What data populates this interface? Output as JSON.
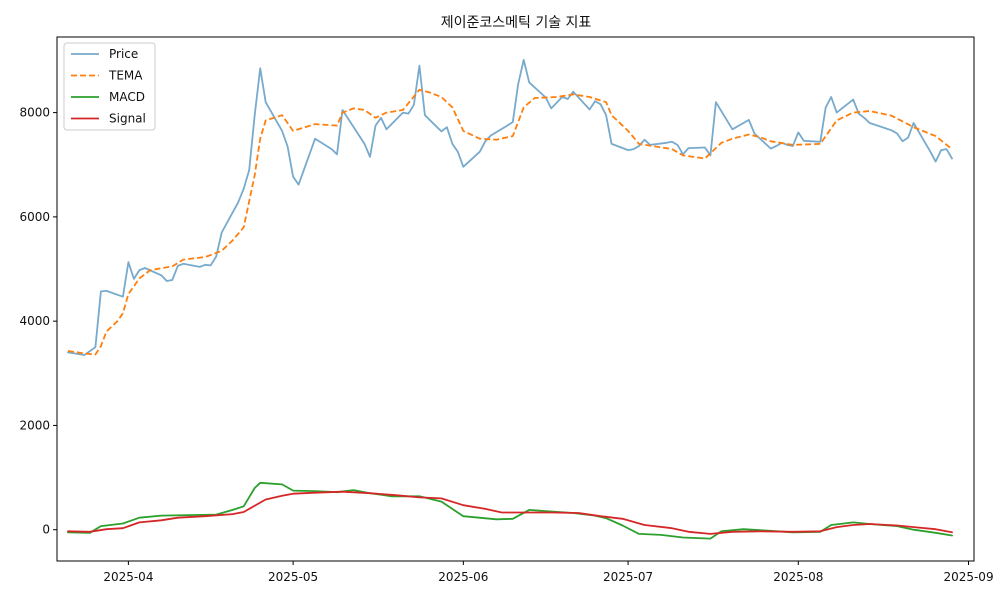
{
  "chart_data": {
    "type": "line",
    "title": "제이준코스메틱 기술 지표",
    "xlabel": "",
    "ylabel": "",
    "grid": false,
    "legend_position": "top-left",
    "x_tick_labels": [
      "2025-04",
      "2025-05",
      "2025-06",
      "2025-07",
      "2025-08",
      "2025-09"
    ],
    "x_ticks": [
      "2025-04-01",
      "2025-05-01",
      "2025-06-01",
      "2025-07-01",
      "2025-08-01",
      "2025-09-01"
    ],
    "xlim": [
      "2025-03-19",
      "2025-09-02"
    ],
    "y_ticks": [
      0,
      2000,
      4000,
      6000,
      8000
    ],
    "ylim": [
      -600,
      9450
    ],
    "series": [
      {
        "name": "Price",
        "color": "#77aacc",
        "dash": "solid",
        "points": [
          [
            "2025-03-21",
            3400
          ],
          [
            "2025-03-24",
            3350
          ],
          [
            "2025-03-26",
            3500
          ],
          [
            "2025-03-27",
            4570
          ],
          [
            "2025-03-28",
            4580
          ],
          [
            "2025-03-31",
            4470
          ],
          [
            "2025-04-01",
            5130
          ],
          [
            "2025-04-02",
            4810
          ],
          [
            "2025-04-03",
            4980
          ],
          [
            "2025-04-04",
            5020
          ],
          [
            "2025-04-07",
            4880
          ],
          [
            "2025-04-08",
            4770
          ],
          [
            "2025-04-09",
            4790
          ],
          [
            "2025-04-10",
            5060
          ],
          [
            "2025-04-11",
            5100
          ],
          [
            "2025-04-14",
            5040
          ],
          [
            "2025-04-15",
            5080
          ],
          [
            "2025-04-16",
            5070
          ],
          [
            "2025-04-17",
            5240
          ],
          [
            "2025-04-18",
            5700
          ],
          [
            "2025-04-21",
            6280
          ],
          [
            "2025-04-22",
            6540
          ],
          [
            "2025-04-23",
            6900
          ],
          [
            "2025-04-24",
            7950
          ],
          [
            "2025-04-25",
            8850
          ],
          [
            "2025-04-26",
            8200
          ],
          [
            "2025-04-29",
            7650
          ],
          [
            "2025-04-30",
            7350
          ],
          [
            "2025-05-01",
            6770
          ],
          [
            "2025-05-02",
            6620
          ],
          [
            "2025-05-05",
            7500
          ],
          [
            "2025-05-08",
            7300
          ],
          [
            "2025-05-09",
            7200
          ],
          [
            "2025-05-10",
            8050
          ],
          [
            "2025-05-14",
            7400
          ],
          [
            "2025-05-15",
            7150
          ],
          [
            "2025-05-16",
            7750
          ],
          [
            "2025-05-17",
            7900
          ],
          [
            "2025-05-18",
            7680
          ],
          [
            "2025-05-21",
            8000
          ],
          [
            "2025-05-22",
            7980
          ],
          [
            "2025-05-23",
            8150
          ],
          [
            "2025-05-24",
            8900
          ],
          [
            "2025-05-25",
            7950
          ],
          [
            "2025-05-28",
            7640
          ],
          [
            "2025-05-29",
            7720
          ],
          [
            "2025-05-30",
            7400
          ],
          [
            "2025-05-31",
            7250
          ],
          [
            "2025-06-01",
            6960
          ],
          [
            "2025-06-04",
            7250
          ],
          [
            "2025-06-05",
            7450
          ],
          [
            "2025-06-06",
            7560
          ],
          [
            "2025-06-09",
            7750
          ],
          [
            "2025-06-10",
            7820
          ],
          [
            "2025-06-11",
            8550
          ],
          [
            "2025-06-12",
            9010
          ],
          [
            "2025-06-13",
            8580
          ],
          [
            "2025-06-16",
            8290
          ],
          [
            "2025-06-17",
            8080
          ],
          [
            "2025-06-19",
            8300
          ],
          [
            "2025-06-20",
            8260
          ],
          [
            "2025-06-21",
            8400
          ],
          [
            "2025-06-24",
            8060
          ],
          [
            "2025-06-25",
            8220
          ],
          [
            "2025-06-26",
            8160
          ],
          [
            "2025-06-27",
            7950
          ],
          [
            "2025-06-28",
            7400
          ],
          [
            "2025-07-01",
            7280
          ],
          [
            "2025-07-02",
            7300
          ],
          [
            "2025-07-03",
            7360
          ],
          [
            "2025-07-04",
            7480
          ],
          [
            "2025-07-05",
            7380
          ],
          [
            "2025-07-08",
            7420
          ],
          [
            "2025-07-09",
            7440
          ],
          [
            "2025-07-10",
            7380
          ],
          [
            "2025-07-11",
            7200
          ],
          [
            "2025-07-12",
            7320
          ],
          [
            "2025-07-15",
            7330
          ],
          [
            "2025-07-16",
            7180
          ],
          [
            "2025-07-17",
            8200
          ],
          [
            "2025-07-20",
            7680
          ],
          [
            "2025-07-23",
            7860
          ],
          [
            "2025-07-24",
            7600
          ],
          [
            "2025-07-27",
            7310
          ],
          [
            "2025-07-28",
            7360
          ],
          [
            "2025-07-29",
            7420
          ],
          [
            "2025-07-30",
            7380
          ],
          [
            "2025-07-31",
            7360
          ],
          [
            "2025-08-01",
            7620
          ],
          [
            "2025-08-02",
            7460
          ],
          [
            "2025-08-05",
            7440
          ],
          [
            "2025-08-06",
            8100
          ],
          [
            "2025-08-07",
            8300
          ],
          [
            "2025-08-08",
            8000
          ],
          [
            "2025-08-11",
            8250
          ],
          [
            "2025-08-12",
            7980
          ],
          [
            "2025-08-13",
            7900
          ],
          [
            "2025-08-14",
            7800
          ],
          [
            "2025-08-18",
            7660
          ],
          [
            "2025-08-19",
            7600
          ],
          [
            "2025-08-20",
            7450
          ],
          [
            "2025-08-21",
            7520
          ],
          [
            "2025-08-22",
            7800
          ],
          [
            "2025-08-25",
            7260
          ],
          [
            "2025-08-26",
            7060
          ],
          [
            "2025-08-27",
            7280
          ],
          [
            "2025-08-28",
            7300
          ],
          [
            "2025-08-29",
            7120
          ]
        ]
      },
      {
        "name": "TEMA",
        "color": "#ff7f0e",
        "dash": "dashed",
        "points": [
          [
            "2025-03-21",
            3430
          ],
          [
            "2025-03-24",
            3380
          ],
          [
            "2025-03-26",
            3360
          ],
          [
            "2025-03-27",
            3520
          ],
          [
            "2025-03-28",
            3800
          ],
          [
            "2025-03-30",
            4000
          ],
          [
            "2025-03-31",
            4150
          ],
          [
            "2025-04-01",
            4520
          ],
          [
            "2025-04-03",
            4820
          ],
          [
            "2025-04-05",
            4980
          ],
          [
            "2025-04-09",
            5050
          ],
          [
            "2025-04-11",
            5180
          ],
          [
            "2025-04-15",
            5230
          ],
          [
            "2025-04-18",
            5350
          ],
          [
            "2025-04-20",
            5550
          ],
          [
            "2025-04-22",
            5800
          ],
          [
            "2025-04-24",
            6800
          ],
          [
            "2025-04-25",
            7500
          ],
          [
            "2025-04-26",
            7850
          ],
          [
            "2025-04-29",
            7950
          ],
          [
            "2025-05-01",
            7650
          ],
          [
            "2025-05-05",
            7780
          ],
          [
            "2025-05-09",
            7750
          ],
          [
            "2025-05-10",
            8000
          ],
          [
            "2025-05-12",
            8080
          ],
          [
            "2025-05-14",
            8050
          ],
          [
            "2025-05-16",
            7900
          ],
          [
            "2025-05-18",
            8000
          ],
          [
            "2025-05-21",
            8050
          ],
          [
            "2025-05-24",
            8440
          ],
          [
            "2025-05-26",
            8380
          ],
          [
            "2025-05-28",
            8300
          ],
          [
            "2025-05-30",
            8100
          ],
          [
            "2025-06-01",
            7650
          ],
          [
            "2025-06-04",
            7500
          ],
          [
            "2025-06-07",
            7480
          ],
          [
            "2025-06-10",
            7550
          ],
          [
            "2025-06-12",
            8100
          ],
          [
            "2025-06-14",
            8280
          ],
          [
            "2025-06-18",
            8300
          ],
          [
            "2025-06-21",
            8350
          ],
          [
            "2025-06-24",
            8300
          ],
          [
            "2025-06-27",
            8200
          ],
          [
            "2025-06-28",
            7950
          ],
          [
            "2025-07-01",
            7650
          ],
          [
            "2025-07-03",
            7400
          ],
          [
            "2025-07-06",
            7350
          ],
          [
            "2025-07-09",
            7300
          ],
          [
            "2025-07-11",
            7180
          ],
          [
            "2025-07-15",
            7120
          ],
          [
            "2025-07-18",
            7420
          ],
          [
            "2025-07-20",
            7500
          ],
          [
            "2025-07-23",
            7580
          ],
          [
            "2025-07-25",
            7530
          ],
          [
            "2025-07-27",
            7450
          ],
          [
            "2025-07-31",
            7380
          ],
          [
            "2025-08-05",
            7400
          ],
          [
            "2025-08-08",
            7850
          ],
          [
            "2025-08-11",
            8000
          ],
          [
            "2025-08-14",
            8030
          ],
          [
            "2025-08-18",
            7940
          ],
          [
            "2025-08-22",
            7720
          ],
          [
            "2025-08-26",
            7550
          ],
          [
            "2025-08-29",
            7300
          ]
        ]
      },
      {
        "name": "MACD",
        "color": "#2ca02c",
        "dash": "solid",
        "points": [
          [
            "2025-03-21",
            -50
          ],
          [
            "2025-03-25",
            -60
          ],
          [
            "2025-03-27",
            70
          ],
          [
            "2025-03-31",
            120
          ],
          [
            "2025-04-03",
            230
          ],
          [
            "2025-04-07",
            270
          ],
          [
            "2025-04-12",
            280
          ],
          [
            "2025-04-17",
            290
          ],
          [
            "2025-04-20",
            380
          ],
          [
            "2025-04-22",
            450
          ],
          [
            "2025-04-24",
            800
          ],
          [
            "2025-04-25",
            900
          ],
          [
            "2025-04-29",
            870
          ],
          [
            "2025-05-01",
            750
          ],
          [
            "2025-05-05",
            740
          ],
          [
            "2025-05-09",
            720
          ],
          [
            "2025-05-12",
            760
          ],
          [
            "2025-05-15",
            700
          ],
          [
            "2025-05-19",
            640
          ],
          [
            "2025-05-24",
            640
          ],
          [
            "2025-05-28",
            540
          ],
          [
            "2025-06-01",
            260
          ],
          [
            "2025-06-07",
            200
          ],
          [
            "2025-06-10",
            210
          ],
          [
            "2025-06-13",
            380
          ],
          [
            "2025-06-17",
            350
          ],
          [
            "2025-06-21",
            320
          ],
          [
            "2025-06-25",
            270
          ],
          [
            "2025-06-27",
            220
          ],
          [
            "2025-06-30",
            80
          ],
          [
            "2025-07-03",
            -80
          ],
          [
            "2025-07-07",
            -100
          ],
          [
            "2025-07-11",
            -150
          ],
          [
            "2025-07-16",
            -170
          ],
          [
            "2025-07-18",
            -30
          ],
          [
            "2025-07-22",
            10
          ],
          [
            "2025-07-25",
            -10
          ],
          [
            "2025-07-31",
            -50
          ],
          [
            "2025-08-05",
            -40
          ],
          [
            "2025-08-07",
            90
          ],
          [
            "2025-08-11",
            140
          ],
          [
            "2025-08-14",
            110
          ],
          [
            "2025-08-19",
            70
          ],
          [
            "2025-08-22",
            0
          ],
          [
            "2025-08-26",
            -60
          ],
          [
            "2025-08-29",
            -110
          ]
        ]
      },
      {
        "name": "Signal",
        "color": "#d62728",
        "dash": "solid",
        "points": [
          [
            "2025-03-21",
            -30
          ],
          [
            "2025-03-25",
            -40
          ],
          [
            "2025-03-28",
            10
          ],
          [
            "2025-03-31",
            30
          ],
          [
            "2025-04-03",
            140
          ],
          [
            "2025-04-07",
            180
          ],
          [
            "2025-04-10",
            230
          ],
          [
            "2025-04-15",
            260
          ],
          [
            "2025-04-20",
            300
          ],
          [
            "2025-04-22",
            340
          ],
          [
            "2025-04-26",
            580
          ],
          [
            "2025-04-29",
            650
          ],
          [
            "2025-05-01",
            690
          ],
          [
            "2025-05-05",
            710
          ],
          [
            "2025-05-10",
            730
          ],
          [
            "2025-05-15",
            700
          ],
          [
            "2025-05-20",
            660
          ],
          [
            "2025-05-24",
            620
          ],
          [
            "2025-05-28",
            600
          ],
          [
            "2025-06-01",
            470
          ],
          [
            "2025-06-05",
            400
          ],
          [
            "2025-06-08",
            330
          ],
          [
            "2025-06-13",
            330
          ],
          [
            "2025-06-17",
            330
          ],
          [
            "2025-06-22",
            320
          ],
          [
            "2025-06-26",
            260
          ],
          [
            "2025-06-30",
            210
          ],
          [
            "2025-07-04",
            90
          ],
          [
            "2025-07-09",
            30
          ],
          [
            "2025-07-12",
            -40
          ],
          [
            "2025-07-16",
            -80
          ],
          [
            "2025-07-20",
            -40
          ],
          [
            "2025-07-25",
            -30
          ],
          [
            "2025-07-31",
            -40
          ],
          [
            "2025-08-05",
            -30
          ],
          [
            "2025-08-08",
            50
          ],
          [
            "2025-08-11",
            90
          ],
          [
            "2025-08-14",
            110
          ],
          [
            "2025-08-19",
            80
          ],
          [
            "2025-08-23",
            40
          ],
          [
            "2025-08-26",
            10
          ],
          [
            "2025-08-29",
            -50
          ]
        ]
      }
    ]
  }
}
